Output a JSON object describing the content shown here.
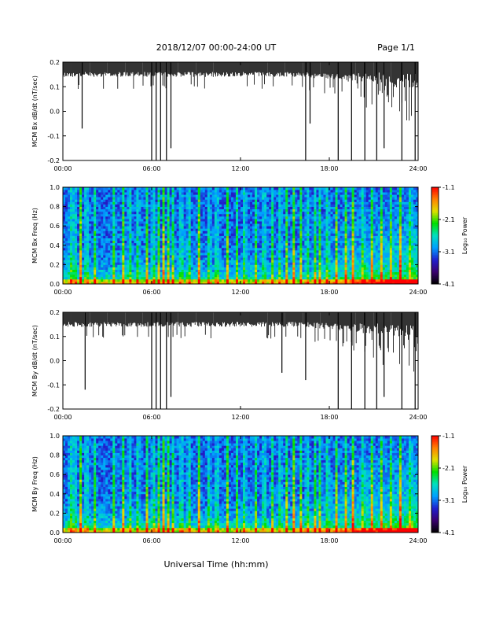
{
  "header": {
    "title": "2018/12/07  00:00-24:00 UT",
    "page": "Page 1/1"
  },
  "xaxis": {
    "label": "Universal Time (hh:mm)",
    "ticks": [
      "00:00",
      "06:00",
      "12:00",
      "18:00",
      "24:00"
    ],
    "range_hours": [
      0,
      24
    ]
  },
  "colorbar": {
    "label": "Log₁₀ Power",
    "ticks": [
      "-1.1",
      "-2.1",
      "-3.1",
      "-4.1"
    ],
    "range": [
      -4.1,
      -1.1
    ],
    "colors": [
      "#000000",
      "#3a0070",
      "#2020d0",
      "#00a0ff",
      "#00e0c0",
      "#00e000",
      "#e0e000",
      "#ff8000",
      "#ff0000"
    ]
  },
  "chart_data": [
    {
      "type": "line",
      "ylabel": "MCM Bx dB/dt (nT/sec)",
      "ylim": [
        -0.2,
        0.2
      ],
      "yticks": [
        "0.2",
        "0.1",
        "0.0",
        "-0.1",
        "-0.2"
      ],
      "x": [
        0,
        1.3,
        1.5,
        6.0,
        6.3,
        6.6,
        7.0,
        7.3,
        16.4,
        16.7,
        18.6,
        19.5,
        20.4,
        21.2,
        21.7,
        22.9,
        23.8
      ],
      "values": [
        0.2,
        -0.07,
        0.2,
        -0.2,
        -0.2,
        -0.2,
        -0.2,
        -0.15,
        -0.2,
        -0.05,
        -0.2,
        -0.2,
        -0.2,
        -0.2,
        -0.15,
        -0.2,
        -0.2
      ],
      "color": "#000000"
    },
    {
      "type": "heatmap",
      "ylabel": "MCM Bx Freq (Hz)",
      "ylim": [
        0,
        1.0
      ],
      "yticks": [
        "1.0",
        "0.8",
        "0.6",
        "0.4",
        "0.2",
        "0.0"
      ],
      "zlim": [
        -4.1,
        -1.1
      ],
      "zlabel": "Log₁₀ Power"
    },
    {
      "type": "line",
      "ylabel": "MCM By dB/dt (nT/sec)",
      "ylim": [
        -0.2,
        0.2
      ],
      "yticks": [
        "0.2",
        "0.1",
        "0.0",
        "-0.1",
        "-0.2"
      ],
      "x": [
        0,
        1.5,
        6.0,
        6.3,
        6.6,
        7.0,
        7.3,
        14.8,
        16.4,
        18.6,
        19.5,
        20.4,
        21.2,
        21.7,
        22.9,
        23.8
      ],
      "values": [
        0.2,
        -0.12,
        -0.2,
        -0.2,
        -0.2,
        -0.2,
        -0.15,
        -0.05,
        -0.08,
        -0.2,
        -0.2,
        -0.2,
        -0.2,
        -0.15,
        -0.2,
        -0.2
      ],
      "color": "#000000"
    },
    {
      "type": "heatmap",
      "ylabel": "MCM By Freq (Hz)",
      "ylim": [
        0,
        1.0
      ],
      "yticks": [
        "1.0",
        "0.8",
        "0.6",
        "0.4",
        "0.2",
        "0.0"
      ],
      "zlim": [
        -4.1,
        -1.1
      ],
      "zlabel": "Log₁₀ Power"
    }
  ]
}
